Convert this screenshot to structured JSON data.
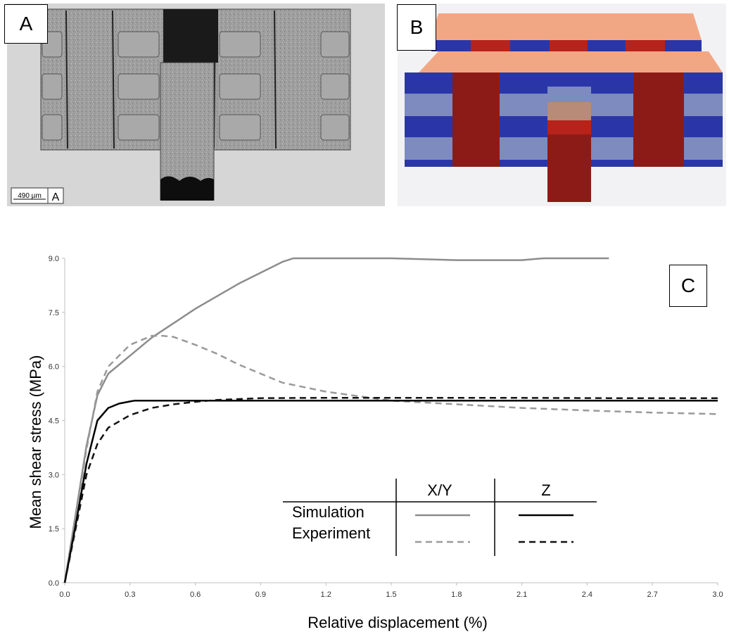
{
  "panels": {
    "a_label": "A",
    "b_label": "B",
    "c_label": "C",
    "scale_bar": "490 µm",
    "scale_bar_tag": "A"
  },
  "chart_data": {
    "type": "line",
    "xlabel": "Relative displacement (%)",
    "ylabel": "Mean shear stress (MPa)",
    "xlim": [
      0,
      3.0
    ],
    "ylim": [
      0,
      9.0
    ],
    "xticks": [
      "0.0",
      "0.3",
      "0.6",
      "0.9",
      "1.2",
      "1.5",
      "1.8",
      "2.1",
      "2.4",
      "2.7",
      "3.0"
    ],
    "yticks": [
      "0.0",
      "1.5",
      "3.0",
      "4.5",
      "6.0",
      "7.5",
      "9.0"
    ],
    "grid": false,
    "series": [
      {
        "direction": "X/Y",
        "kind": "Simulation",
        "color": "#8c8c8c",
        "dash": "solid",
        "x": [
          0,
          0.05,
          0.1,
          0.15,
          0.2,
          0.3,
          0.4,
          0.5,
          0.6,
          0.7,
          0.8,
          0.9,
          1.0,
          1.05,
          1.1,
          1.2,
          1.5,
          1.8,
          1.9,
          2.1,
          2.2,
          2.3,
          2.4,
          2.5
        ],
        "y": [
          0,
          1.9,
          3.8,
          5.2,
          5.8,
          6.3,
          6.8,
          7.2,
          7.6,
          7.95,
          8.3,
          8.6,
          8.9,
          9.05,
          9.1,
          9.1,
          9.05,
          8.95,
          8.95,
          8.95,
          9.05,
          9.2,
          9.45,
          9.75
        ]
      },
      {
        "direction": "X/Y",
        "kind": "Experiment",
        "color": "#9a9a9a",
        "dash": "dashed",
        "x": [
          0,
          0.05,
          0.1,
          0.15,
          0.2,
          0.3,
          0.4,
          0.45,
          0.5,
          0.6,
          0.7,
          0.8,
          0.9,
          1.0,
          1.2,
          1.5,
          1.8,
          2.1,
          2.4,
          2.7,
          3.0
        ],
        "y": [
          0,
          1.8,
          3.7,
          5.3,
          6.0,
          6.6,
          6.85,
          6.85,
          6.82,
          6.6,
          6.35,
          6.05,
          5.8,
          5.55,
          5.3,
          5.05,
          4.95,
          4.85,
          4.78,
          4.72,
          4.68
        ]
      },
      {
        "direction": "Z",
        "kind": "Simulation",
        "color": "#000000",
        "dash": "solid",
        "x": [
          0,
          0.05,
          0.1,
          0.15,
          0.2,
          0.25,
          0.3,
          0.32,
          0.6,
          1.0,
          1.5,
          2.0,
          2.5,
          3.0
        ],
        "y": [
          0,
          1.6,
          3.3,
          4.5,
          4.85,
          4.97,
          5.03,
          5.05,
          5.05,
          5.05,
          5.05,
          5.05,
          5.05,
          5.05
        ]
      },
      {
        "direction": "Z",
        "kind": "Experiment",
        "color": "#111111",
        "dash": "dashed",
        "x": [
          0,
          0.05,
          0.1,
          0.15,
          0.2,
          0.3,
          0.4,
          0.5,
          0.6,
          0.7,
          0.9,
          1.2,
          1.5,
          2.0,
          2.5,
          3.0
        ],
        "y": [
          0,
          1.5,
          3.0,
          3.85,
          4.3,
          4.65,
          4.85,
          4.95,
          5.02,
          5.07,
          5.12,
          5.13,
          5.13,
          5.13,
          5.12,
          5.12
        ]
      }
    ],
    "legend": {
      "placement": "bottom-right",
      "col_headers": [
        "X/Y",
        "Z"
      ],
      "row_headers": [
        "Simulation",
        "Experiment"
      ]
    }
  }
}
